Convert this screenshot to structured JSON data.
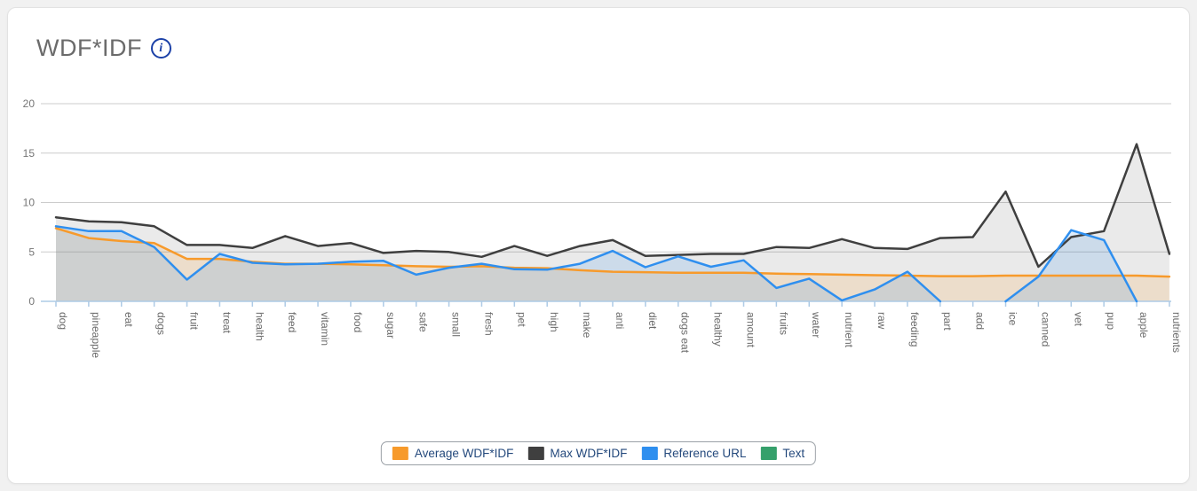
{
  "card": {
    "title": "WDF*IDF",
    "info_icon": "i"
  },
  "colors": {
    "average": "#f79a2b",
    "max": "#3f3f3f",
    "reference": "#2f8fef",
    "text_series": "#35a06b",
    "gridline": "#cccccc",
    "baseline": "#aecbe6",
    "axis_label": "#757575",
    "x_label": "#6b6b6b",
    "legend_text": "#254a7d",
    "title_text": "#6b6b6b",
    "info_icon": "#1c41a8"
  },
  "chart_data": {
    "type": "area",
    "title": "WDF*IDF",
    "xlabel": "",
    "ylabel": "",
    "ylim": [
      0,
      20
    ],
    "yticks": [
      0,
      5,
      10,
      15,
      20
    ],
    "grid": true,
    "legend_position": "bottom",
    "categories": [
      "dog",
      "pineapple",
      "eat",
      "dogs",
      "fruit",
      "treat",
      "health",
      "feed",
      "vitamin",
      "food",
      "sugar",
      "safe",
      "small",
      "fresh",
      "pet",
      "high",
      "make",
      "anti",
      "diet",
      "dogs eat",
      "healthy",
      "amount",
      "fruits",
      "water",
      "nutrient",
      "raw",
      "feeding",
      "part",
      "add",
      "ice",
      "canned",
      "vet",
      "pup",
      "apple",
      "nutrients"
    ],
    "series": [
      {
        "name": "Average WDF*IDF",
        "color": "#f79a2b",
        "fill": "rgba(247,154,43,0.16)",
        "values": [
          7.4,
          6.4,
          6.1,
          5.9,
          4.3,
          4.3,
          4.0,
          3.8,
          3.8,
          3.75,
          3.65,
          3.55,
          3.5,
          3.55,
          3.4,
          3.35,
          3.15,
          3.0,
          2.95,
          2.9,
          2.9,
          2.9,
          2.8,
          2.75,
          2.7,
          2.65,
          2.6,
          2.55,
          2.55,
          2.6,
          2.6,
          2.6,
          2.6,
          2.6,
          2.5
        ]
      },
      {
        "name": "Max WDF*IDF",
        "color": "#3f3f3f",
        "fill": "rgba(80,80,80,0.12)",
        "values": [
          8.5,
          8.1,
          8.0,
          7.6,
          5.7,
          5.7,
          5.4,
          6.6,
          5.6,
          5.9,
          4.9,
          5.1,
          5.0,
          4.5,
          5.6,
          4.6,
          5.6,
          6.2,
          4.6,
          4.7,
          4.8,
          4.8,
          5.5,
          5.4,
          6.3,
          5.4,
          5.3,
          6.4,
          6.5,
          11.1,
          3.5,
          6.5,
          7.1,
          15.9,
          4.8
        ]
      },
      {
        "name": "Reference URL",
        "color": "#2f8fef",
        "fill": "rgba(47,143,239,0.16)",
        "values": [
          7.6,
          7.1,
          7.1,
          5.5,
          2.2,
          4.8,
          3.9,
          3.75,
          3.8,
          4.0,
          4.1,
          2.7,
          3.4,
          3.8,
          3.25,
          3.2,
          3.8,
          5.1,
          3.45,
          4.55,
          3.5,
          4.15,
          1.35,
          2.3,
          0.1,
          1.2,
          3.0,
          0,
          null,
          0,
          2.5,
          7.2,
          6.2,
          0,
          null
        ]
      },
      {
        "name": "Text",
        "color": "#35a06b",
        "fill": "rgba(53,160,107,0.16)",
        "values": []
      }
    ]
  },
  "legend": {
    "items": [
      "Average WDF*IDF",
      "Max WDF*IDF",
      "Reference URL",
      "Text"
    ]
  }
}
